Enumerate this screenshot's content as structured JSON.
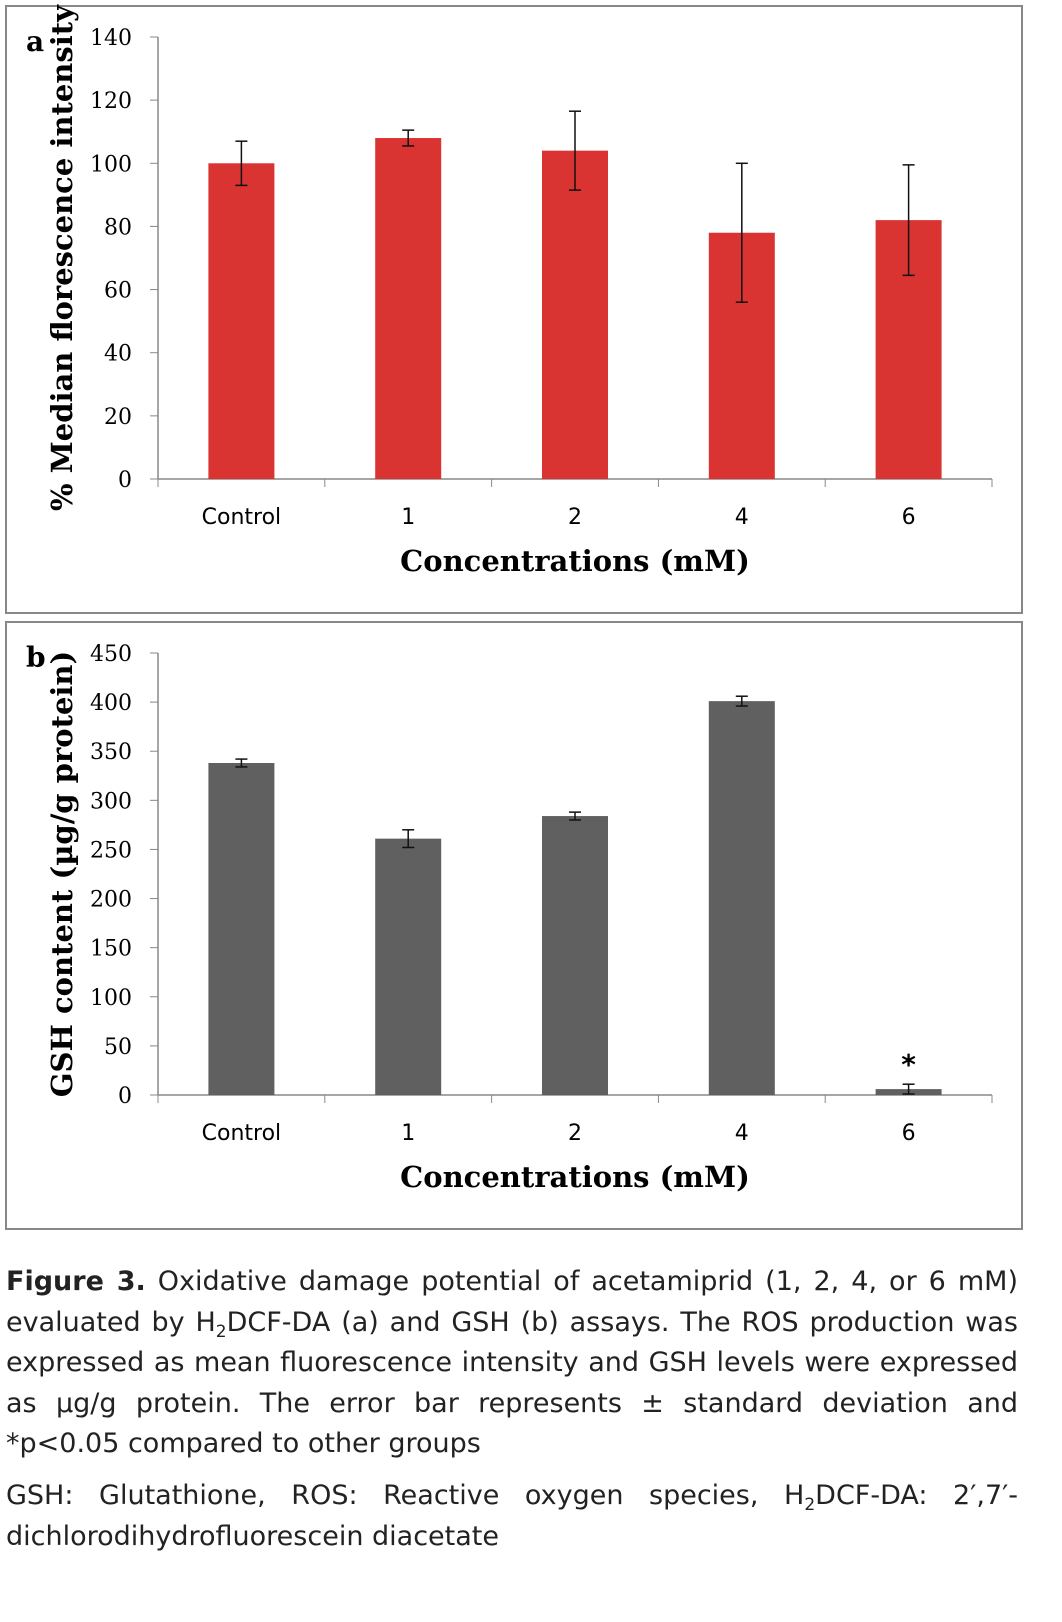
{
  "chart_data": [
    {
      "type": "bar",
      "panel_label": "a",
      "categories": [
        "Control",
        "1",
        "2",
        "4",
        "6"
      ],
      "values": [
        100,
        108,
        104,
        78,
        82
      ],
      "errors": [
        7,
        2.5,
        12.5,
        22,
        17.5
      ],
      "xlabel": "Concentrations (mM)",
      "ylabel": "% Median florescence intensity",
      "ylim": [
        0,
        140
      ],
      "yticks": [
        0,
        20,
        40,
        60,
        80,
        100,
        120,
        140
      ],
      "color": "#d93431",
      "grid": false,
      "annotations": []
    },
    {
      "type": "bar",
      "panel_label": "b",
      "categories": [
        "Control",
        "1",
        "2",
        "4",
        "6"
      ],
      "values": [
        338,
        261,
        284,
        401,
        6
      ],
      "errors": [
        4,
        9,
        4,
        5,
        5
      ],
      "xlabel": "Concentrations (mM)",
      "ylabel": "GSH content (µg/g protein)",
      "ylim": [
        0,
        450
      ],
      "yticks": [
        0,
        50,
        100,
        150,
        200,
        250,
        300,
        350,
        400,
        450
      ],
      "color": "#5f605f",
      "grid": false,
      "annotations": [
        {
          "category": "6",
          "text": "*"
        }
      ]
    }
  ],
  "caption": {
    "label": "Figure 3.",
    "part1": " Oxidative damage potential of acetamiprid (1, 2, 4, or 6 mM) evaluated by H",
    "sub1": "2",
    "part2": "DCF-DA (a) and GSH (b) assays. The ROS production was expressed as mean fluorescence intensity and GSH levels were expressed as µg/g protein. The error bar represents ± standard deviation and *p<0.05 compared to other groups"
  },
  "abbreviations": {
    "part1": "GSH: Glutathione, ROS: Reactive oxygen species, H",
    "sub1": "2",
    "part2": "DCF-DA: 2′,7′-dichlorodihydrofluorescein diacetate"
  }
}
